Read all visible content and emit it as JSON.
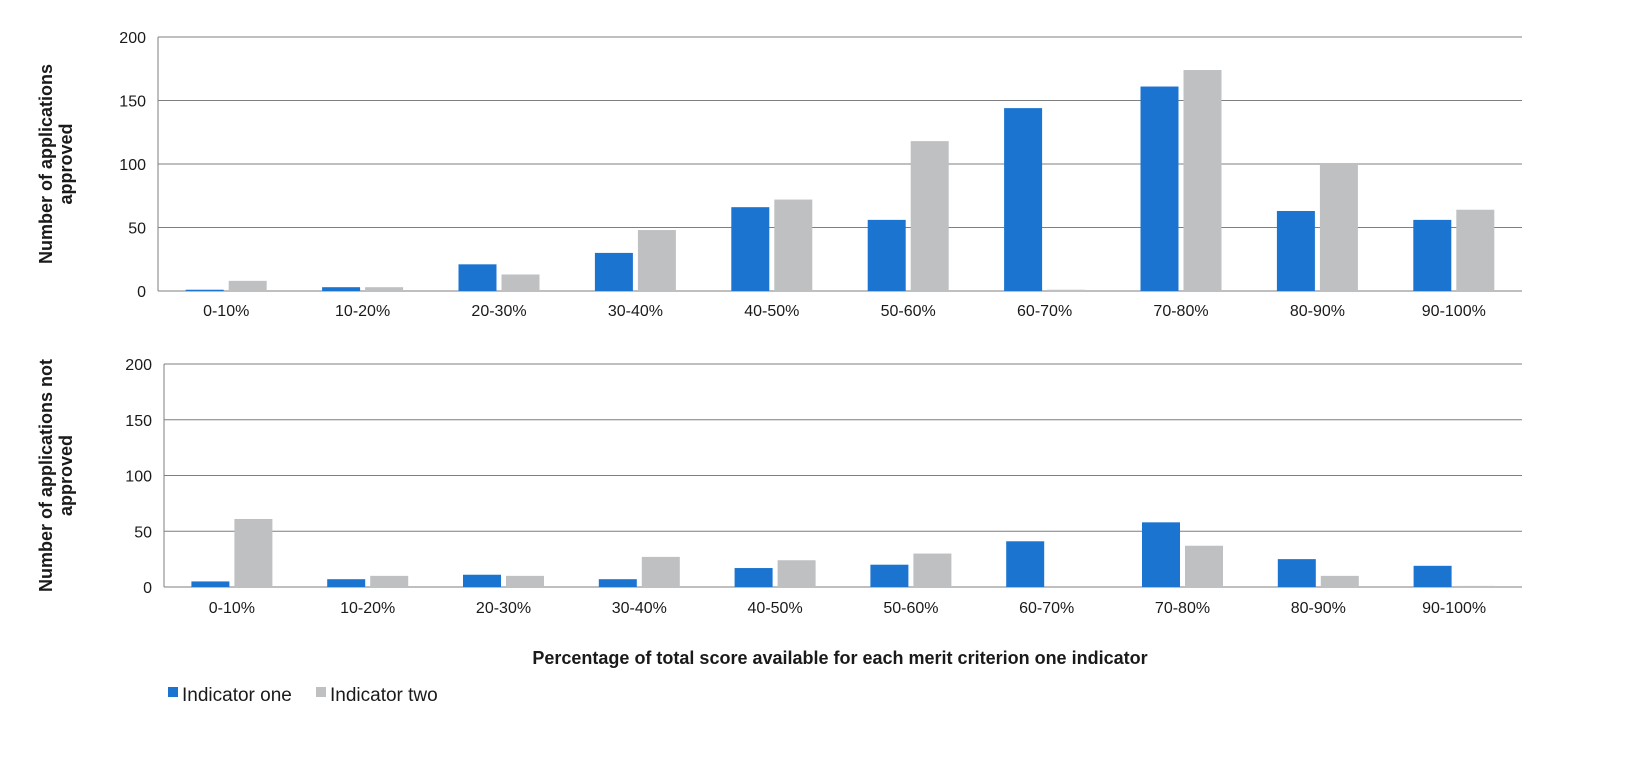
{
  "colors": {
    "indicator_one": "#1b74d0",
    "indicator_two": "#bfc0c2",
    "gridline": "#7f7f7f",
    "axis": "#7f7f7f"
  },
  "shared_xlabel": "Percentage of total score available for each merit criterion one indicator",
  "legend": [
    {
      "label": "Indicator one",
      "color_key": "indicator_one"
    },
    {
      "label": "Indicator two",
      "color_key": "indicator_two"
    }
  ],
  "chart_data": [
    {
      "type": "bar",
      "ylabel_lines": [
        "Number of applications",
        "approved"
      ],
      "ylim": [
        0,
        200
      ],
      "yticks": [
        "0",
        "50",
        "100",
        "150",
        "200"
      ],
      "grid": true,
      "categories": [
        "0-10%",
        "10-20%",
        "20-30%",
        "30-40%",
        "40-50%",
        "50-60%",
        "60-70%",
        "70-80%",
        "80-90%",
        "90-100%"
      ],
      "series": [
        {
          "name": "Indicator one",
          "values": [
            1,
            3,
            21,
            30,
            66,
            56,
            144,
            161,
            63,
            56
          ]
        },
        {
          "name": "Indicator two",
          "values": [
            8,
            3,
            13,
            48,
            72,
            118,
            1,
            174,
            100,
            64
          ]
        }
      ]
    },
    {
      "type": "bar",
      "ylabel_lines": [
        "Number of applications not",
        "approved"
      ],
      "ylim": [
        0,
        200
      ],
      "yticks": [
        "0",
        "50",
        "100",
        "150",
        "200"
      ],
      "grid": true,
      "categories": [
        "0-10%",
        "10-20%",
        "20-30%",
        "30-40%",
        "40-50%",
        "50-60%",
        "60-70%",
        "70-80%",
        "80-90%",
        "90-100%"
      ],
      "series": [
        {
          "name": "Indicator one",
          "values": [
            5,
            7,
            11,
            7,
            17,
            20,
            41,
            58,
            25,
            19
          ]
        },
        {
          "name": "Indicator two",
          "values": [
            61,
            10,
            10,
            27,
            24,
            30,
            0,
            37,
            10,
            1
          ]
        }
      ]
    }
  ]
}
